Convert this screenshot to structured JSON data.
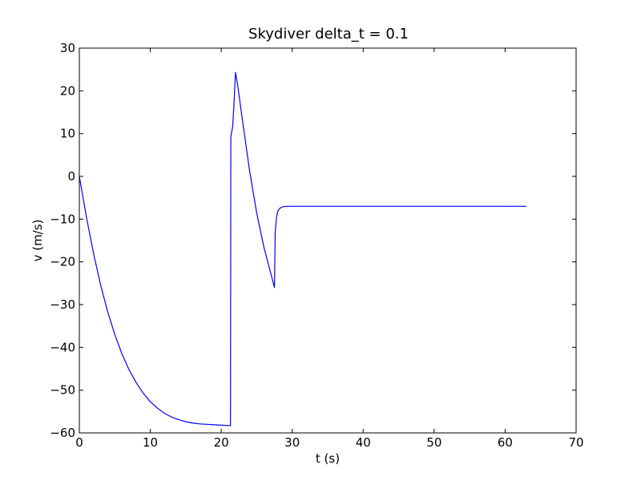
{
  "chart_data": {
    "type": "line",
    "title": "Skydiver delta_t = 0.1",
    "xlabel": "t (s)",
    "ylabel": "v (m/s)",
    "xlim": [
      0,
      70
    ],
    "ylim": [
      -60,
      30
    ],
    "xticks": [
      0,
      10,
      20,
      30,
      40,
      50,
      60,
      70
    ],
    "xtick_labels": [
      "0",
      "10",
      "20",
      "30",
      "40",
      "50",
      "60",
      "70"
    ],
    "yticks": [
      30,
      20,
      10,
      0,
      -10,
      -20,
      -30,
      -40,
      -50,
      -60
    ],
    "ytick_labels": [
      "30",
      "20",
      "10",
      "0",
      "−10",
      "−20",
      "−30",
      "−40",
      "−50",
      "−60"
    ],
    "grid": false,
    "legend": "none",
    "series": [
      {
        "color": "#0000ff",
        "x": [
          0,
          1,
          2,
          3,
          4,
          5,
          6,
          7,
          8,
          9,
          10,
          11,
          12,
          13,
          14,
          15,
          16,
          17,
          18,
          19,
          20,
          21.3,
          21.35,
          21.6,
          21.8,
          22.0,
          22.3,
          23.0,
          24.0,
          25.0,
          26.0,
          27.0,
          27.5,
          27.6,
          27.8,
          28.0,
          28.3,
          28.7,
          29.2,
          30.0,
          32.0,
          35.0,
          40.0,
          45.0,
          50.0,
          55.0,
          60.0,
          63.0
        ],
        "y": [
          0,
          -9.5,
          -18.0,
          -25.4,
          -31.7,
          -37.0,
          -41.5,
          -45.2,
          -48.2,
          -50.7,
          -52.7,
          -54.2,
          -55.4,
          -56.3,
          -56.9,
          -57.4,
          -57.7,
          -57.9,
          -58.0,
          -58.1,
          -58.2,
          -58.3,
          9.3,
          11.5,
          17.0,
          24.3,
          21.5,
          13.0,
          1.2,
          -8.6,
          -16.5,
          -22.8,
          -26.0,
          -13.0,
          -9.4,
          -8.0,
          -7.4,
          -7.1,
          -7.0,
          -7.0,
          -7.0,
          -7.0,
          -7.0,
          -7.0,
          -7.0,
          -7.0,
          -7.0,
          -7.0
        ]
      }
    ]
  }
}
